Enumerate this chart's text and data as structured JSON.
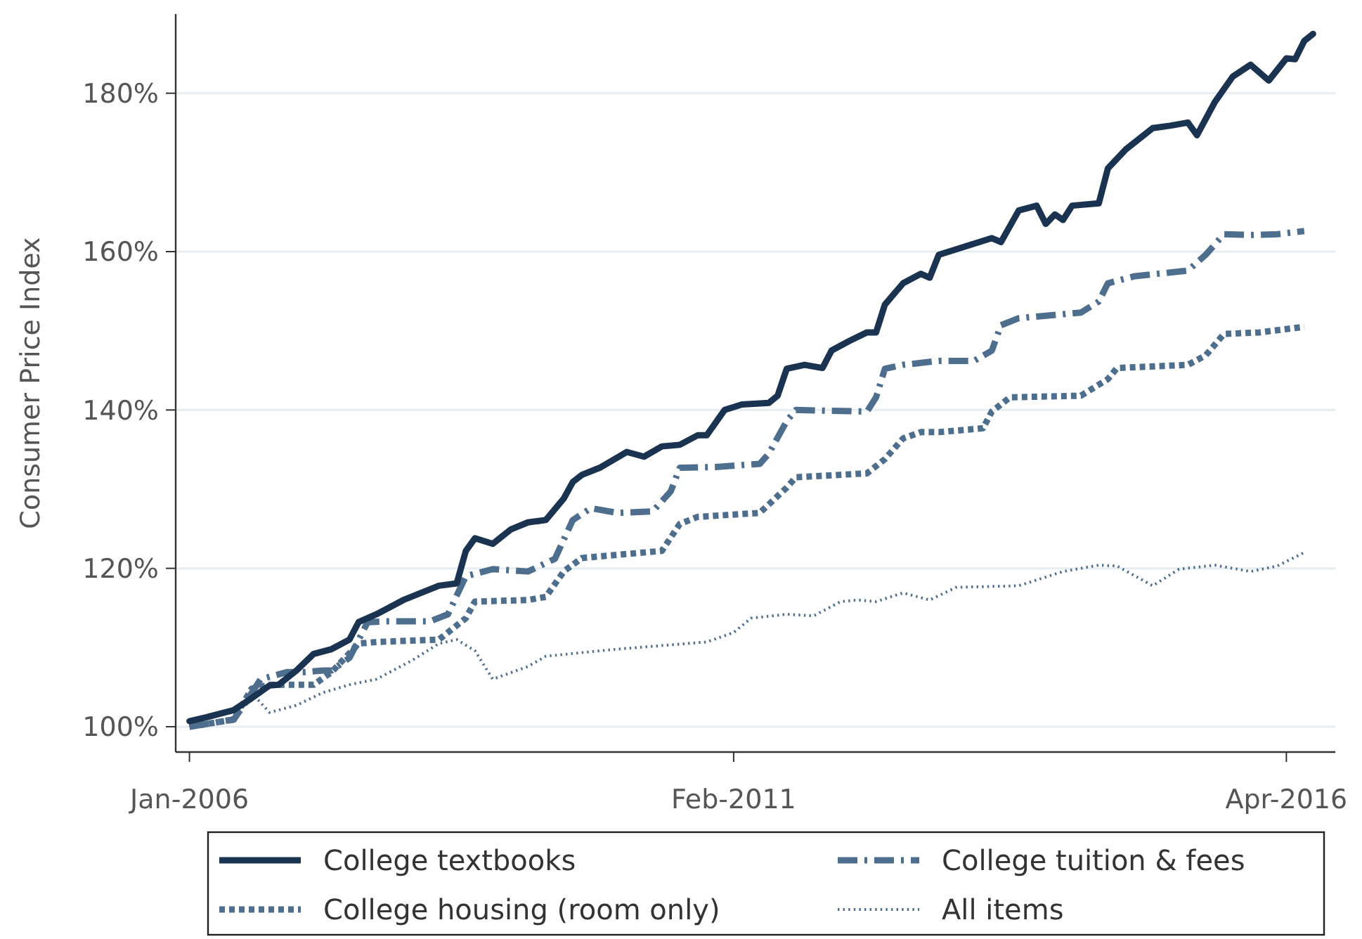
{
  "chart_data": {
    "type": "line",
    "ylabel": "Consumer Price Index",
    "xlim": [
      "2005-11-15",
      "2016-09-15"
    ],
    "xticks": [
      {
        "value": "2006-01",
        "label": "Jan-2006"
      },
      {
        "value": "2011-02",
        "label": "Feb-2011"
      },
      {
        "value": "2016-04",
        "label": "Apr-2016"
      }
    ],
    "ylim": [
      96.8,
      190
    ],
    "yticks": [
      {
        "value": 100,
        "label": "100%"
      },
      {
        "value": 120,
        "label": "120%"
      },
      {
        "value": 140,
        "label": "140%"
      },
      {
        "value": 160,
        "label": "160%"
      },
      {
        "value": 180,
        "label": "180%"
      }
    ],
    "grid": "y",
    "legend": "bottom",
    "marker": "none",
    "series": [
      {
        "name": "College textbooks",
        "color": "#1a3350",
        "line_style": "solid",
        "x": [
          "2006-01",
          "2006-03",
          "2006-06",
          "2006-08",
          "2006-10",
          "2006-11",
          "2007-01",
          "2007-03",
          "2007-05",
          "2007-07",
          "2007-08",
          "2007-10",
          "2008-01",
          "2008-05",
          "2008-07",
          "2008-08",
          "2008-09",
          "2008-11",
          "2009-01",
          "2009-03",
          "2009-05",
          "2009-07",
          "2009-08",
          "2009-09",
          "2009-11",
          "2010-02",
          "2010-04",
          "2010-06",
          "2010-08",
          "2010-10",
          "2010-11",
          "2011-01",
          "2011-03",
          "2011-06",
          "2011-07",
          "2011-08",
          "2011-10",
          "2011-12",
          "2012-01",
          "2012-03",
          "2012-05",
          "2012-06",
          "2012-07",
          "2012-09",
          "2012-11",
          "2012-12",
          "2013-01",
          "2013-07",
          "2013-08",
          "2013-10",
          "2013-12",
          "2014-01",
          "2014-02",
          "2014-03",
          "2014-04",
          "2014-07",
          "2014-08",
          "2014-10",
          "2015-01",
          "2015-03",
          "2015-05",
          "2015-06",
          "2015-08",
          "2015-10",
          "2015-12",
          "2016-02",
          "2016-04",
          "2016-05",
          "2016-06",
          "2016-07"
        ],
        "values": [
          100.7,
          101.2,
          102.1,
          103.6,
          105.2,
          105.3,
          107.1,
          109.2,
          109.8,
          111,
          113.2,
          114.2,
          116,
          117.8,
          118.1,
          122.2,
          123.8,
          123.1,
          124.9,
          125.8,
          126.1,
          128.8,
          130.9,
          131.8,
          132.7,
          134.7,
          134.1,
          135.4,
          135.6,
          136.8,
          136.8,
          140,
          140.7,
          140.9,
          141.8,
          145.2,
          145.7,
          145.3,
          147.5,
          148.7,
          149.8,
          149.8,
          153.3,
          156,
          157.2,
          156.7,
          159.6,
          161.7,
          161.2,
          165.2,
          165.8,
          163.5,
          164.7,
          164,
          165.8,
          166.1,
          170.5,
          172.9,
          175.6,
          175.9,
          176.3,
          174.7,
          178.9,
          182.1,
          183.6,
          181.6,
          184.4,
          184.3,
          186.6,
          187.5
        ]
      },
      {
        "name": "College tuition & fees",
        "color": "#4e6e8e",
        "line_style": "dashed",
        "x": [
          "2006-01",
          "2006-06",
          "2006-07",
          "2006-09",
          "2006-12",
          "2007-02",
          "2007-04",
          "2007-05",
          "2007-07",
          "2007-09",
          "2007-11",
          "2008-04",
          "2008-06",
          "2008-08",
          "2008-11",
          "2009-03",
          "2009-06",
          "2009-08",
          "2009-10",
          "2010-01",
          "2010-05",
          "2010-07",
          "2010-08",
          "2010-12",
          "2011-05",
          "2011-06",
          "2011-08",
          "2011-09",
          "2012-05",
          "2012-06",
          "2012-07",
          "2012-09",
          "2013-01",
          "2013-05",
          "2013-07",
          "2013-08",
          "2013-10",
          "2014-05",
          "2014-07",
          "2014-08",
          "2014-11",
          "2015-05",
          "2015-07",
          "2015-09",
          "2015-12",
          "2016-03",
          "2016-06"
        ],
        "values": [
          100,
          100.9,
          102.5,
          106,
          106.9,
          106.9,
          107.1,
          107.1,
          108.7,
          113.2,
          113.3,
          113.3,
          114.2,
          119,
          119.9,
          119.6,
          121.2,
          126.1,
          127.6,
          127,
          127.2,
          129.7,
          132.7,
          132.8,
          133.2,
          134.5,
          138.6,
          140,
          139.8,
          141.6,
          145.2,
          145.7,
          146.2,
          146.2,
          147.5,
          150.7,
          151.6,
          152.3,
          153.7,
          156,
          156.9,
          157.6,
          159.6,
          162.2,
          162.1,
          162.2,
          162.6
        ]
      },
      {
        "name": "College housing (room only)",
        "color": "#4e6e8e",
        "line_style": "dotted",
        "x": [
          "2006-01",
          "2006-06",
          "2006-08",
          "2006-10",
          "2007-03",
          "2007-05",
          "2007-08",
          "2007-10",
          "2008-05",
          "2008-08",
          "2008-09",
          "2009-03",
          "2009-05",
          "2009-07",
          "2009-09",
          "2010-06",
          "2010-08",
          "2010-10",
          "2011-05",
          "2011-08",
          "2011-09",
          "2012-05",
          "2012-07",
          "2012-09",
          "2012-11",
          "2013-01",
          "2013-06",
          "2013-07",
          "2013-09",
          "2014-05",
          "2014-08",
          "2014-09",
          "2015-05",
          "2015-07",
          "2015-09",
          "2016-01",
          "2016-06"
        ],
        "values": [
          100,
          100.9,
          104.8,
          105.3,
          105.3,
          106.9,
          110.5,
          110.7,
          111,
          113.7,
          115.8,
          116,
          116.4,
          119.6,
          121.3,
          122.2,
          125.6,
          126.5,
          127,
          130.2,
          131.5,
          132,
          133.8,
          136.4,
          137.2,
          137.2,
          137.7,
          139.8,
          141.6,
          141.8,
          143.9,
          145.3,
          145.7,
          146.9,
          149.6,
          149.8,
          150.5
        ]
      },
      {
        "name": "All items",
        "color": "#4e6e8e",
        "line_style": "dotted",
        "x": [
          "2006-01",
          "2006-06",
          "2006-08",
          "2006-10",
          "2007-01",
          "2007-04",
          "2007-07",
          "2007-10",
          "2008-02",
          "2008-05",
          "2008-07",
          "2008-09",
          "2008-11",
          "2009-03",
          "2009-05",
          "2010-01",
          "2010-11",
          "2011-02",
          "2011-04",
          "2011-08",
          "2011-11",
          "2012-02",
          "2012-04",
          "2012-06",
          "2012-09",
          "2012-12",
          "2013-03",
          "2013-10",
          "2014-03",
          "2014-07",
          "2014-09",
          "2015-01",
          "2015-04",
          "2015-08",
          "2015-12",
          "2016-03",
          "2016-06"
        ],
        "values": [
          100,
          101.2,
          104.3,
          101.8,
          102.7,
          104.3,
          105.3,
          106,
          108.4,
          110.5,
          111,
          109.6,
          106,
          107.6,
          108.9,
          109.8,
          110.7,
          111.9,
          113.7,
          114.2,
          114,
          115.8,
          116,
          115.8,
          116.9,
          116,
          117.6,
          117.8,
          119.6,
          120.4,
          120.3,
          117.8,
          119.9,
          120.4,
          119.6,
          120.3,
          122
        ]
      }
    ]
  }
}
